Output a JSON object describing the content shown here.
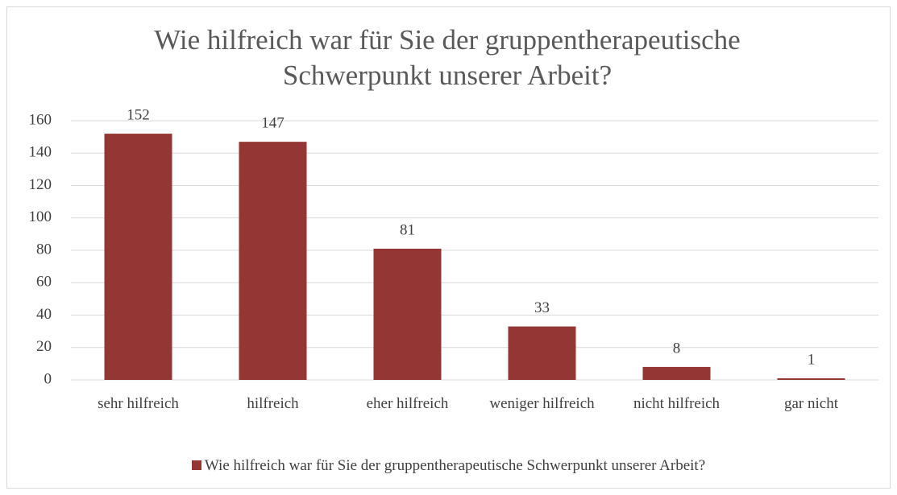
{
  "chart_data": {
    "type": "bar",
    "title": "Wie hilfreich war für Sie der gruppentherapeutische Schwerpunkt unserer Arbeit?",
    "categories": [
      "sehr hilfreich",
      "hilfreich",
      "eher hilfreich",
      "weniger hilfreich",
      "nicht hilfreich",
      "gar nicht"
    ],
    "series": [
      {
        "name": "Wie hilfreich war für Sie der gruppentherapeutische Schwerpunkt unserer Arbeit?",
        "color": "#943634",
        "values": [
          152,
          147,
          81,
          33,
          8,
          1
        ]
      }
    ],
    "ylim": [
      0,
      160
    ],
    "yticks": [
      0,
      20,
      40,
      60,
      80,
      100,
      120,
      140,
      160
    ],
    "grid": true,
    "legend": "bottom"
  }
}
